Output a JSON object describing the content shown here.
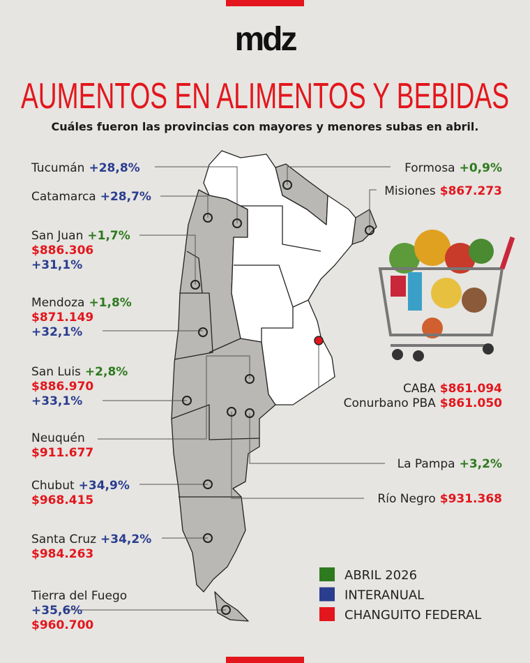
{
  "header": {
    "logo": "mdz",
    "title": "AUMENTOS EN ALIMENTOS Y BEBIDAS",
    "subtitle": "Cuáles fueron las provincias con mayores y menores subas en abril."
  },
  "provinces_left": [
    {
      "lines": [
        [
          {
            "text": "Tucumán",
            "color": "#222222"
          },
          {
            "text": "+28,8%",
            "color": "#2b3d8f"
          }
        ]
      ]
    },
    {
      "lines": [
        [
          {
            "text": "Catamarca",
            "color": "#222222"
          },
          {
            "text": "+28,7%",
            "color": "#2b3d8f"
          }
        ]
      ]
    },
    {
      "lines": [
        [
          {
            "text": "San Juan",
            "color": "#222222"
          },
          {
            "text": "+1,7%",
            "color": "#2e7a1f"
          }
        ],
        [
          {
            "text": "$886.306",
            "color": "#e3161d"
          }
        ],
        [
          {
            "text": "+31,1%",
            "color": "#2b3d8f"
          }
        ]
      ]
    },
    {
      "lines": [
        [
          {
            "text": "Mendoza",
            "color": "#222222"
          },
          {
            "text": "+1,8%",
            "color": "#2e7a1f"
          }
        ],
        [
          {
            "text": "$871.149",
            "color": "#e3161d"
          }
        ],
        [
          {
            "text": "+32,1%",
            "color": "#2b3d8f"
          }
        ]
      ]
    },
    {
      "lines": [
        [
          {
            "text": "San Luis",
            "color": "#222222"
          },
          {
            "text": "+2,8%",
            "color": "#2e7a1f"
          }
        ],
        [
          {
            "text": "$886.970",
            "color": "#e3161d"
          }
        ],
        [
          {
            "text": "+33,1%",
            "color": "#2b3d8f"
          }
        ]
      ]
    },
    {
      "lines": [
        [
          {
            "text": "Neuquén",
            "color": "#222222"
          }
        ],
        [
          {
            "text": "$911.677",
            "color": "#e3161d"
          }
        ]
      ]
    },
    {
      "lines": [
        [
          {
            "text": "Chubut",
            "color": "#222222"
          },
          {
            "text": "+34,9%",
            "color": "#2b3d8f"
          }
        ],
        [
          {
            "text": "$968.415",
            "color": "#e3161d"
          }
        ]
      ]
    },
    {
      "lines": [
        [
          {
            "text": "Santa Cruz",
            "color": "#222222"
          },
          {
            "text": "+34,2%",
            "color": "#2b3d8f"
          }
        ],
        [
          {
            "text": "$984.263",
            "color": "#e3161d"
          }
        ]
      ]
    },
    {
      "lines": [
        [
          {
            "text": "Tierra del Fuego",
            "color": "#222222"
          }
        ],
        [
          {
            "text": "+35,6%",
            "color": "#2b3d8f"
          }
        ],
        [
          {
            "text": "$960.700",
            "color": "#e3161d"
          }
        ]
      ]
    }
  ],
  "provinces_right": [
    {
      "lines": [
        [
          {
            "text": "Formosa",
            "color": "#222222"
          },
          {
            "text": "+0,9%",
            "color": "#2e7a1f"
          }
        ]
      ]
    },
    {
      "lines": [
        [
          {
            "text": "Misiones",
            "color": "#222222"
          },
          {
            "text": "$867.273",
            "color": "#e3161d"
          }
        ]
      ]
    },
    {
      "lines": [
        [
          {
            "text": "CABA",
            "color": "#222222"
          },
          {
            "text": "$861.094",
            "color": "#e3161d"
          }
        ],
        [
          {
            "text": "Conurbano PBA",
            "color": "#222222"
          },
          {
            "text": "$861.050",
            "color": "#e3161d"
          }
        ]
      ]
    },
    {
      "lines": [
        [
          {
            "text": "La Pampa",
            "color": "#222222"
          },
          {
            "text": "+3,2%",
            "color": "#2e7a1f"
          }
        ]
      ]
    },
    {
      "lines": [
        [
          {
            "text": "Río Negro",
            "color": "#222222"
          },
          {
            "text": "$931.368",
            "color": "#e3161d"
          }
        ]
      ]
    }
  ],
  "legend": [
    {
      "label": "ABRIL 2026",
      "color": "#2e7a1f"
    },
    {
      "label": "INTERANUAL",
      "color": "#2b3d8f"
    },
    {
      "label": "CHANGUITO FEDERAL",
      "color": "#e3161d"
    }
  ]
}
